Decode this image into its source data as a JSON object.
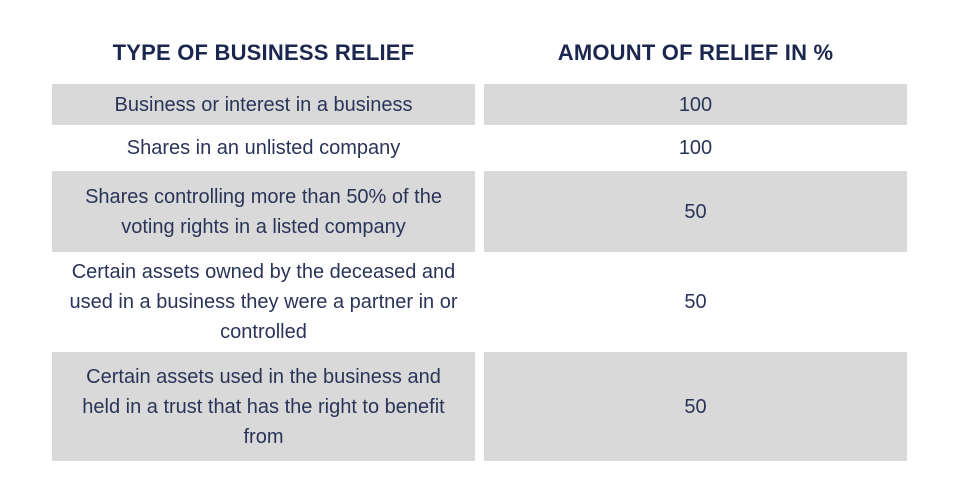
{
  "table": {
    "headers": [
      "TYPE OF BUSINESS RELIEF",
      "AMOUNT OF RELIEF IN %"
    ],
    "rows": [
      {
        "type": "Business or interest in a business",
        "amount": "100"
      },
      {
        "type": "Shares in an unlisted company",
        "amount": "100"
      },
      {
        "type": "Shares controlling more than 50% of the voting rights in a listed company",
        "amount": "50"
      },
      {
        "type": "Certain assets owned by the deceased and used in a business they were a partner in or controlled",
        "amount": "50"
      },
      {
        "type": "Certain assets used in the business and held in a trust that has the right to benefit from",
        "amount": "50"
      }
    ]
  }
}
